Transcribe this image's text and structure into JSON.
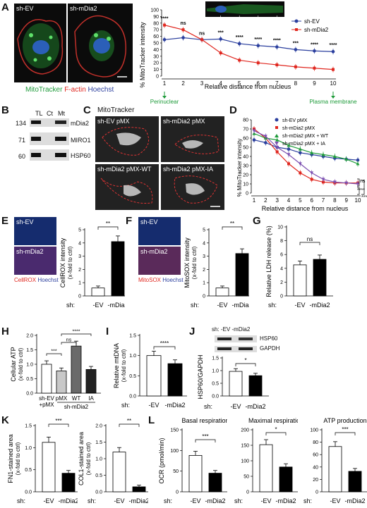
{
  "panels": [
    "A",
    "B",
    "C",
    "D",
    "E",
    "F",
    "G",
    "H",
    "I",
    "J",
    "K",
    "L"
  ],
  "colors": {
    "blue": "#2b3f9e",
    "red": "#e0271f",
    "green": "#1e9b3a",
    "purple": "#7b4fb0",
    "black": "#000000",
    "gray": "#9a9a9a",
    "lightgray": "#c8c8c8",
    "darkgray": "#6a6a6a"
  },
  "A": {
    "img1": "sh-EV",
    "img2": "sh-mDia2",
    "caption": {
      "a": "MitoTracker",
      "b": "F-actin",
      "c": "Hoechst"
    },
    "ylabel": "% MitoTracker intensity",
    "xlabel": "Relative distance from nucleus",
    "legend": [
      "sh-EV",
      "sh-mDia2"
    ],
    "sig": [
      "****",
      "ns",
      "ns",
      "***",
      "****",
      "****",
      "****",
      "***",
      "****",
      "****"
    ],
    "arrow_left": "Perinuclear",
    "arrow_right": "Plasma membrane",
    "yticks": [
      "0",
      "10",
      "20",
      "30",
      "40",
      "50",
      "60",
      "70",
      "80",
      "90",
      "100"
    ],
    "xticks": [
      "1",
      "2",
      "3",
      "4",
      "5",
      "6",
      "7",
      "8",
      "9",
      "10"
    ]
  },
  "B": {
    "cols": [
      "TL",
      "Ct",
      "Mt"
    ],
    "rows": [
      {
        "mw": "134",
        "name": "mDia2"
      },
      {
        "mw": "71",
        "name": "MIRO1"
      },
      {
        "mw": "60",
        "name": "HSP60"
      }
    ]
  },
  "C": {
    "title": "MitoTracker",
    "imgs": [
      "sh-EV pMX",
      "sh-mDia2 pMX",
      "sh-mDia2 pMX-WT",
      "sh-mDia2 pMX-IA"
    ]
  },
  "D": {
    "ylabel": "% MitoTracker intensity",
    "xlabel": "Relative distance from nucleus",
    "legend": [
      "sh-EV pMX",
      "sh-mDia2 pMX",
      "sh-mDia2 pMX + WT",
      "sh-mDia2 pMX + IA"
    ],
    "sig": [
      "ns",
      "****",
      "****"
    ],
    "yticks": [
      "0",
      "10",
      "20",
      "30",
      "40",
      "50",
      "60",
      "70",
      "80"
    ],
    "xticks": [
      "1",
      "2",
      "3",
      "4",
      "5",
      "6",
      "7",
      "8",
      "9",
      "10"
    ]
  },
  "E": {
    "img1": "sh-EV",
    "img2": "sh-mDia2",
    "cap_a": "CellROX",
    "cap_b": "Hoechst",
    "ylabel": "CellROX intensity",
    "ylabel2": "(x-fold to ctrl)",
    "yticks": [
      "0",
      "1",
      "2",
      "3",
      "4",
      "5"
    ],
    "sh": "sh:",
    "cats": [
      "-EV",
      "-mDia2"
    ],
    "sig": "**"
  },
  "F": {
    "img1": "sh-EV",
    "img2": "sh-mDia2",
    "cap_a": "MitoSOX",
    "cap_b": "Hoechst",
    "ylabel": "MitoSOX intensity",
    "ylabel2": "(x-fold to ctrl)",
    "yticks": [
      "0",
      "1",
      "2",
      "3",
      "4",
      "5"
    ],
    "sh": "sh:",
    "cats": [
      "-EV",
      "-mDia2"
    ],
    "sig": "**"
  },
  "G": {
    "ylabel": "Relative LDH release (%)",
    "yticks": [
      "0",
      "2",
      "4",
      "6",
      "8",
      "10"
    ],
    "sh": "sh:",
    "cats": [
      "-EV",
      "-mDia2"
    ],
    "sig": "ns"
  },
  "H": {
    "ylabel": "Cellular ATP",
    "ylabel2": "(x-fold to ctrl)",
    "yticks": [
      "0.0",
      "0.5",
      "1.0",
      "1.5",
      "2.0"
    ],
    "cats": [
      "sh-EV",
      "pMX",
      "WT",
      "IA"
    ],
    "cat1b": "+pMX",
    "group": "sh-mDia2",
    "sig": [
      "***",
      "ns",
      "****"
    ]
  },
  "I": {
    "ylabel": "Relative mtDNA",
    "ylabel2": "(x-fold to ctrl)",
    "yticks": [
      "0.0",
      "0.5",
      "1.0",
      "1.5"
    ],
    "sh": "sh:",
    "cats": [
      "-EV",
      "-mDia2"
    ],
    "sig": "****"
  },
  "J": {
    "blot_sh": "sh:",
    "blot_cats": [
      "-EV",
      "-mDia2"
    ],
    "blots": [
      "HSP60",
      "GAPDH"
    ],
    "ylabel": "HSP60/GAPDH",
    "yticks": [
      "0.0",
      "0.5",
      "1.0",
      "1.5"
    ],
    "sh": "sh:",
    "cats": [
      "-EV",
      "-mDia2"
    ],
    "sig": "*"
  },
  "K": {
    "charts": [
      {
        "ylabel": "FN1-stained area",
        "ylabel2": "(x-fold to ctrl)",
        "yticks": [
          "0.0",
          "0.5",
          "1.0",
          "1.5"
        ],
        "sig": "***"
      },
      {
        "ylabel": "COL1-stained area",
        "ylabel2": "(x-fold to ctrl)",
        "yticks": [
          "0.0",
          "0.5",
          "1.0",
          "1.5",
          "2.0"
        ],
        "sig": "**"
      }
    ],
    "sh": "sh:",
    "cats": [
      "-EV",
      "-mDia2"
    ]
  },
  "L": {
    "charts": [
      {
        "title": "Basal respiration",
        "yticks": [
          "0",
          "50",
          "100",
          "150"
        ],
        "sig": "***"
      },
      {
        "title": "Maximal respiration",
        "yticks": [
          "0",
          "50",
          "100",
          "150",
          "200"
        ],
        "sig": "*"
      },
      {
        "title": "ATP production",
        "yticks": [
          "0",
          "20",
          "40",
          "60",
          "80",
          "100"
        ],
        "sig": "***"
      }
    ],
    "ylabel": "OCR (pmol/min)",
    "sh": "sh:",
    "cats": [
      "-EV",
      "-mDia2"
    ]
  },
  "chart_data": [
    {
      "panel": "A",
      "type": "line",
      "x": [
        1,
        2,
        3,
        4,
        5,
        6,
        7,
        8,
        9,
        10
      ],
      "ylim": [
        0,
        100
      ],
      "series": [
        {
          "name": "sh-EV",
          "values": [
            55,
            58,
            55,
            56,
            49,
            46,
            44,
            40,
            38,
            37
          ]
        },
        {
          "name": "sh-mDia2",
          "values": [
            77,
            70,
            55,
            35,
            24,
            20,
            17,
            14,
            12,
            10
          ]
        }
      ]
    },
    {
      "panel": "D",
      "type": "line",
      "x": [
        1,
        2,
        3,
        4,
        5,
        6,
        7,
        8,
        9,
        10
      ],
      "ylim": [
        0,
        80
      ],
      "series": [
        {
          "name": "sh-EV pMX",
          "values": [
            58,
            55,
            50,
            48,
            44,
            42,
            40,
            38,
            37,
            36
          ]
        },
        {
          "name": "sh-mDia2 pMX",
          "values": [
            70,
            60,
            45,
            32,
            22,
            15,
            12,
            11,
            11,
            11
          ]
        },
        {
          "name": "sh-mDia2 pMX + WT",
          "values": [
            65,
            60,
            58,
            52,
            48,
            44,
            42,
            40,
            37,
            32
          ]
        },
        {
          "name": "sh-mDia2 pMX + IA",
          "values": [
            68,
            62,
            50,
            42,
            32,
            22,
            15,
            12,
            11,
            10
          ]
        }
      ]
    },
    {
      "panel": "E",
      "type": "bar",
      "categories": [
        "-EV",
        "-mDia2"
      ],
      "values": [
        0.6,
        4.1
      ],
      "ylim": [
        0,
        5
      ]
    },
    {
      "panel": "F",
      "type": "bar",
      "categories": [
        "-EV",
        "-mDia2"
      ],
      "values": [
        0.6,
        3.2
      ],
      "ylim": [
        0,
        5
      ]
    },
    {
      "panel": "G",
      "type": "bar",
      "categories": [
        "-EV",
        "-mDia2"
      ],
      "values": [
        4.5,
        5.3
      ],
      "ylim": [
        0,
        10
      ]
    },
    {
      "panel": "H",
      "type": "bar",
      "categories": [
        "sh-EV +pMX",
        "pMX",
        "WT",
        "IA"
      ],
      "values": [
        1.0,
        0.77,
        1.63,
        0.82
      ],
      "ylim": [
        0,
        2
      ]
    },
    {
      "panel": "I",
      "type": "bar",
      "categories": [
        "-EV",
        "-mDia2"
      ],
      "values": [
        1.0,
        0.8
      ],
      "ylim": [
        0,
        1.5
      ]
    },
    {
      "panel": "J",
      "type": "bar",
      "categories": [
        "-EV",
        "-mDia2"
      ],
      "values": [
        0.97,
        0.8
      ],
      "ylim": [
        0,
        1.5
      ]
    },
    {
      "panel": "K-FN1",
      "type": "bar",
      "categories": [
        "-EV",
        "-mDia2"
      ],
      "values": [
        1.12,
        0.42
      ],
      "ylim": [
        0,
        1.5
      ]
    },
    {
      "panel": "K-COL1",
      "type": "bar",
      "categories": [
        "-EV",
        "-mDia2"
      ],
      "values": [
        1.2,
        0.15
      ],
      "ylim": [
        0,
        2
      ]
    },
    {
      "panel": "L-Basal",
      "type": "bar",
      "categories": [
        "-EV",
        "-mDia2"
      ],
      "values": [
        88,
        45
      ],
      "ylim": [
        0,
        150
      ]
    },
    {
      "panel": "L-Maximal",
      "type": "bar",
      "categories": [
        "-EV",
        "-mDia2"
      ],
      "values": [
        152,
        80
      ],
      "ylim": [
        0,
        200
      ]
    },
    {
      "panel": "L-ATP",
      "type": "bar",
      "categories": [
        "-EV",
        "-mDia2"
      ],
      "values": [
        73,
        33
      ],
      "ylim": [
        0,
        100
      ]
    }
  ]
}
